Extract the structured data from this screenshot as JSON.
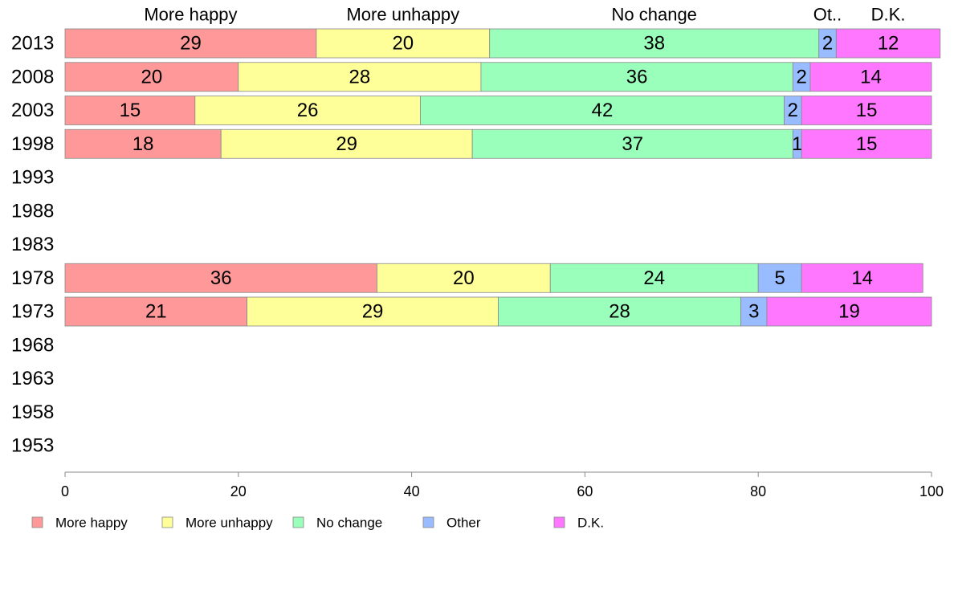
{
  "chart_data": {
    "type": "bar",
    "orientation": "horizontal",
    "stacked": true,
    "categories": [
      "2013",
      "2008",
      "2003",
      "1998",
      "1993",
      "1988",
      "1983",
      "1978",
      "1973",
      "1968",
      "1963",
      "1958",
      "1953"
    ],
    "series": [
      {
        "name": "More happy",
        "short_name": "More happy",
        "color": "#ff9999",
        "values": [
          29,
          20,
          15,
          18,
          null,
          null,
          null,
          36,
          21,
          null,
          null,
          null,
          null
        ]
      },
      {
        "name": "More unhappy",
        "short_name": "More unhappy",
        "color": "#ffff99",
        "values": [
          20,
          28,
          26,
          29,
          null,
          null,
          null,
          20,
          29,
          null,
          null,
          null,
          null
        ]
      },
      {
        "name": "No change",
        "short_name": "No change",
        "color": "#99ffbb",
        "values": [
          38,
          36,
          42,
          37,
          null,
          null,
          null,
          24,
          28,
          null,
          null,
          null,
          null
        ]
      },
      {
        "name": "Other",
        "short_name": "Ot..",
        "color": "#99bbff",
        "values": [
          2,
          2,
          2,
          1,
          null,
          null,
          null,
          5,
          3,
          null,
          null,
          null,
          null
        ]
      },
      {
        "name": "D.K.",
        "short_name": "D.K.",
        "color": "#ff77ff",
        "values": [
          12,
          14,
          15,
          15,
          null,
          null,
          null,
          14,
          19,
          null,
          null,
          null,
          null
        ]
      }
    ],
    "xlim": [
      0,
      100
    ],
    "xticks": [
      0,
      20,
      40,
      60,
      80,
      100
    ],
    "grid": false,
    "legend_position": "bottom"
  }
}
